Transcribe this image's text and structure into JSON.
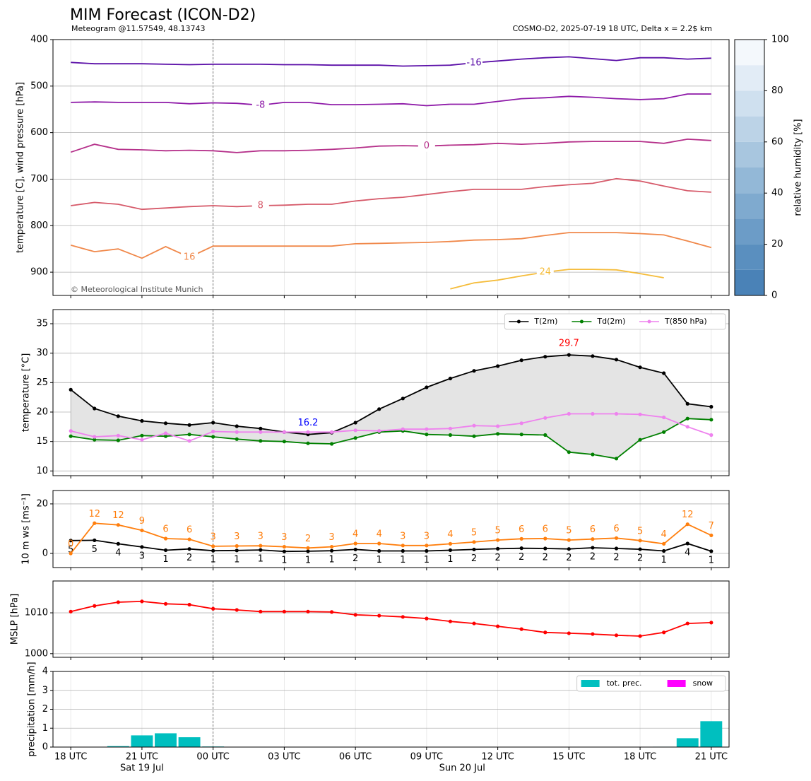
{
  "title": "MIM Forecast (ICON-D2)",
  "subtitle_left": "Meteogram @11.57549, 48.13743",
  "subtitle_right": "COSMO-D2, 2025-07-19 18 UTC, Delta x = 2.2$ km",
  "time_axis": {
    "x": [
      0,
      1,
      2,
      3,
      4,
      5,
      6,
      7,
      8,
      9,
      10,
      11,
      12,
      13,
      14,
      15,
      16,
      17,
      18,
      19,
      20,
      21,
      22,
      23,
      24,
      25,
      26,
      27
    ],
    "xlim": [
      -0.75,
      27.75
    ],
    "xticks": [
      {
        "value": 0,
        "label": "18 UTC"
      },
      {
        "value": 3,
        "label": "21 UTC"
      },
      {
        "value": 6,
        "label": "00 UTC"
      },
      {
        "value": 9,
        "label": "03 UTC"
      },
      {
        "value": 12,
        "label": "06 UTC"
      },
      {
        "value": 15,
        "label": "09 UTC"
      },
      {
        "value": 18,
        "label": "12 UTC"
      },
      {
        "value": 21,
        "label": "15 UTC"
      },
      {
        "value": 24,
        "label": "18 UTC"
      },
      {
        "value": 27,
        "label": "21 UTC"
      }
    ],
    "date_labels": [
      {
        "value": 3,
        "label": "Sat 19 Jul"
      },
      {
        "value": 16.5,
        "label": "Sun 20 Jul"
      }
    ],
    "day_lines": [
      6
    ]
  },
  "colorbar": {
    "label": "relative humidity [%]",
    "ylim": [
      0,
      100
    ],
    "yticks": [
      0,
      20,
      40,
      60,
      80,
      100
    ],
    "levels": [
      0,
      10,
      20,
      30,
      40,
      50,
      60,
      70,
      80,
      90,
      100
    ],
    "colors": [
      "#4a82b7",
      "#5a8fbf",
      "#6c9cc7",
      "#7faacf",
      "#93b8d7",
      "#a8c6df",
      "#bcd3e7",
      "#cfe0ef",
      "#e2ecf6",
      "#f4f8fc"
    ]
  },
  "chart_data": [
    {
      "type": "contour",
      "ylabel": "temperature [C], wind pressure [hPa]",
      "credit": "© Meteorological Institute Munich",
      "ylim": [
        400,
        950
      ],
      "inverted": true,
      "yticks": [
        400,
        500,
        600,
        700,
        800,
        900
      ],
      "grid": true,
      "series": [
        {
          "name": "-16",
          "color": "#5b0fa8",
          "label_x": 17,
          "values": [
            449,
            452,
            452,
            452,
            453,
            454,
            453,
            453,
            453,
            454,
            454,
            455,
            455,
            455,
            457,
            456,
            455,
            450,
            446,
            442,
            439,
            437,
            441,
            445,
            439,
            439,
            442,
            440
          ]
        },
        {
          "name": "-8",
          "color": "#8e1aa8",
          "label_x": 8,
          "values": [
            535,
            534,
            535,
            535,
            535,
            538,
            536,
            537,
            541,
            535,
            535,
            540,
            540,
            539,
            538,
            542,
            539,
            539,
            533,
            527,
            525,
            522,
            524,
            527,
            529,
            527,
            517,
            517
          ]
        },
        {
          "name": "0",
          "color": "#b5308a",
          "label_x": 15,
          "values": [
            642,
            625,
            636,
            637,
            639,
            638,
            639,
            643,
            639,
            639,
            638,
            636,
            633,
            629,
            628,
            629,
            627,
            626,
            623,
            625,
            623,
            620,
            619,
            619,
            619,
            623,
            614,
            617
          ]
        },
        {
          "name": "8",
          "color": "#d65a6a",
          "label_x": 8,
          "values": [
            757,
            750,
            754,
            765,
            762,
            759,
            757,
            759,
            757,
            756,
            754,
            754,
            747,
            742,
            739,
            733,
            727,
            722,
            722,
            722,
            716,
            712,
            709,
            699,
            704,
            715,
            725,
            728
          ]
        },
        {
          "name": "16",
          "color": "#f0884a",
          "label_x": 5,
          "values": [
            842,
            856,
            850,
            870,
            845,
            868,
            844,
            844,
            844,
            844,
            844,
            844,
            839,
            838,
            837,
            836,
            834,
            831,
            830,
            828,
            821,
            815,
            815,
            815,
            817,
            820,
            833,
            847
          ]
        },
        {
          "name": "24",
          "color": "#f5bc3a",
          "label_x": 20,
          "values": [
            null,
            null,
            null,
            null,
            null,
            null,
            null,
            null,
            null,
            null,
            null,
            null,
            null,
            null,
            null,
            null,
            936,
            923,
            917,
            908,
            900,
            894,
            894,
            895,
            903,
            912,
            null,
            null
          ]
        }
      ]
    },
    {
      "type": "line",
      "ylabel": "temperature [°C]",
      "ylim": [
        9.2,
        37.4
      ],
      "yticks": [
        10,
        15,
        20,
        25,
        30,
        35
      ],
      "grid": true,
      "legend": "upper right",
      "fill_between": [
        0,
        1
      ],
      "fill_color": "#e4e4e4",
      "series": [
        {
          "name": "T(2m)",
          "color": "#000000",
          "values": [
            23.8,
            20.6,
            19.3,
            18.5,
            18.1,
            17.8,
            18.2,
            17.6,
            17.2,
            16.6,
            16.2,
            16.5,
            18.2,
            20.5,
            22.3,
            24.2,
            25.7,
            27.0,
            27.8,
            28.8,
            29.4,
            29.7,
            29.5,
            28.9,
            27.6,
            26.6,
            21.4,
            20.9
          ]
        },
        {
          "name": "Td(2m)",
          "color": "#008000",
          "values": [
            15.9,
            15.3,
            15.2,
            16.0,
            15.9,
            16.2,
            15.8,
            15.4,
            15.1,
            15.0,
            14.7,
            14.6,
            15.6,
            16.6,
            16.8,
            16.2,
            16.1,
            15.9,
            16.3,
            16.2,
            16.1,
            13.2,
            12.8,
            12.1,
            15.3,
            16.6,
            18.9,
            18.7
          ]
        },
        {
          "name": "T(850 hPa)",
          "color": "#ee82ee",
          "values": [
            16.8,
            15.8,
            16.0,
            15.3,
            16.4,
            15.1,
            16.7,
            16.6,
            16.6,
            16.6,
            16.6,
            16.6,
            16.9,
            16.8,
            17.1,
            17.1,
            17.2,
            17.7,
            17.6,
            18.1,
            19.0,
            19.7,
            19.7,
            19.7,
            19.6,
            19.1,
            17.5,
            16.1
          ]
        }
      ],
      "annotations": [
        {
          "label": "29.7",
          "x": 21,
          "y": 29.7,
          "color": "#ff0000"
        },
        {
          "label": "16.2",
          "x": 10,
          "y": 16.2,
          "color": "#0000ff"
        }
      ]
    },
    {
      "type": "line",
      "ylabel": "10 m ws [ms⁻¹]",
      "ylim": [
        -5.7,
        25.4
      ],
      "yticks": [
        0,
        20
      ],
      "grid": true,
      "series": [
        {
          "color": "#000000",
          "label_position": "below",
          "values": [
            5.2,
            5.3,
            3.9,
            2.6,
            1.3,
            1.8,
            1.1,
            1.2,
            1.4,
            0.8,
            0.9,
            1.1,
            1.6,
            1.0,
            1.0,
            1.0,
            1.3,
            1.6,
            1.9,
            2.1,
            2.0,
            1.8,
            2.3,
            2.0,
            1.7,
            1.0,
            4.0,
            0.9
          ],
          "value_labels": [
            "5",
            "5",
            "4",
            "3",
            "1",
            "2",
            "1",
            "1",
            "1",
            "1",
            "1",
            "1",
            "2",
            "1",
            "1",
            "1",
            "1",
            "2",
            "2",
            "2",
            "2",
            "2",
            "2",
            "2",
            "2",
            "1",
            "4",
            "1"
          ]
        },
        {
          "color": "#ff7f0e",
          "label_position": "above",
          "values": [
            0,
            12.2,
            11.5,
            9.3,
            6.0,
            5.7,
            2.9,
            3.0,
            3.1,
            2.7,
            2.2,
            2.7,
            4.0,
            4.0,
            3.2,
            3.2,
            3.9,
            4.6,
            5.4,
            5.9,
            6.0,
            5.4,
            5.8,
            6.2,
            5.2,
            3.9,
            11.8,
            7.3
          ],
          "value_labels": [
            "0",
            "12",
            "12",
            "9",
            "6",
            "6",
            "3",
            "3",
            "3",
            "3",
            "2",
            "3",
            "4",
            "4",
            "3",
            "3",
            "4",
            "5",
            "5",
            "6",
            "6",
            "5",
            "6",
            "6",
            "5",
            "4",
            "12",
            "7"
          ]
        }
      ]
    },
    {
      "type": "line",
      "ylabel": "MSLP [hPa]",
      "ylim": [
        999.1,
        1017.8
      ],
      "yticks": [
        1000,
        1010
      ],
      "grid": true,
      "series": [
        {
          "color": "#ff0000",
          "values": [
            1010.3,
            1011.7,
            1012.6,
            1012.8,
            1012.2,
            1012.0,
            1011.0,
            1010.7,
            1010.3,
            1010.3,
            1010.3,
            1010.2,
            1009.5,
            1009.3,
            1009.0,
            1008.6,
            1007.9,
            1007.4,
            1006.7,
            1006.0,
            1005.2,
            1005.0,
            1004.8,
            1004.5,
            1004.3,
            1005.2,
            1007.4,
            1007.6
          ]
        }
      ]
    },
    {
      "type": "bar",
      "ylabel": "precipitation [mm/h]",
      "ylim": [
        0,
        4
      ],
      "yticks": [
        0,
        1,
        2,
        3,
        4
      ],
      "grid": true,
      "legend": "upper right",
      "series": [
        {
          "name": "tot. prec.",
          "color": "#00bfbf",
          "values": [
            0,
            0,
            0.05,
            0.62,
            0.73,
            0.52,
            0.03,
            0,
            0,
            0,
            0,
            0,
            0,
            0,
            0,
            0,
            0,
            0,
            0,
            0,
            0,
            0,
            0,
            0,
            0,
            0.02,
            0.47,
            1.37
          ]
        },
        {
          "name": "snow",
          "color": "#ff00ff",
          "values": [
            0,
            0,
            0,
            0,
            0,
            0,
            0,
            0,
            0,
            0,
            0,
            0,
            0,
            0,
            0,
            0,
            0,
            0,
            0,
            0,
            0,
            0,
            0,
            0,
            0,
            0,
            0,
            0
          ]
        }
      ]
    }
  ]
}
